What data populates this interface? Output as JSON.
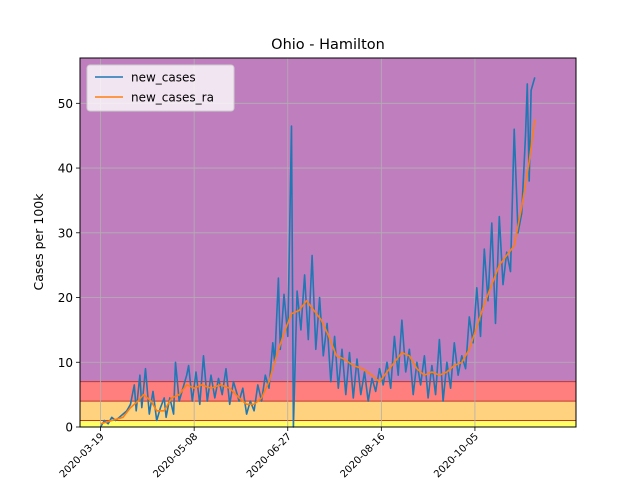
{
  "chart_data": {
    "type": "line",
    "title": "Ohio - Hamilton",
    "xlabel": "",
    "ylabel": "Cases per 100k",
    "x_range": [
      "2020-03-08",
      "2020-11-28"
    ],
    "ylim": [
      0,
      57
    ],
    "grid": true,
    "legend": "top-left",
    "x_ticks": [
      {
        "date": "2020-03-19",
        "label": "2020-03-19"
      },
      {
        "date": "2020-05-08",
        "label": "2020-05-08"
      },
      {
        "date": "2020-06-27",
        "label": "2020-06-27"
      },
      {
        "date": "2020-08-16",
        "label": "2020-08-16"
      },
      {
        "date": "2020-10-05",
        "label": "2020-10-05"
      }
    ],
    "y_ticks": [
      0,
      10,
      20,
      30,
      40,
      50
    ],
    "bands": [
      {
        "from": 0,
        "to": 1,
        "color": "#ffff66"
      },
      {
        "from": 1,
        "to": 4,
        "color": "#ffd280"
      },
      {
        "from": 4,
        "to": 7,
        "color": "#ff7f7f"
      },
      {
        "from": 7,
        "to": 57,
        "color": "#bf7fbf"
      }
    ],
    "band_edge_color": "#c0392b",
    "series": [
      {
        "name": "new_cases",
        "color": "#1f77b4",
        "points": [
          [
            "2020-03-19",
            0.0
          ],
          [
            "2020-03-21",
            1.0
          ],
          [
            "2020-03-23",
            0.5
          ],
          [
            "2020-03-25",
            1.5
          ],
          [
            "2020-03-27",
            1.0
          ],
          [
            "2020-03-29",
            1.5
          ],
          [
            "2020-03-31",
            2.0
          ],
          [
            "2020-04-02",
            2.5
          ],
          [
            "2020-04-04",
            3.5
          ],
          [
            "2020-04-06",
            6.5
          ],
          [
            "2020-04-07",
            2.5
          ],
          [
            "2020-04-09",
            8.0
          ],
          [
            "2020-04-10",
            3.0
          ],
          [
            "2020-04-12",
            9.0
          ],
          [
            "2020-04-14",
            2.0
          ],
          [
            "2020-04-16",
            5.5
          ],
          [
            "2020-04-18",
            1.0
          ],
          [
            "2020-04-20",
            3.0
          ],
          [
            "2020-04-22",
            4.5
          ],
          [
            "2020-04-23",
            1.5
          ],
          [
            "2020-04-25",
            4.5
          ],
          [
            "2020-04-27",
            2.0
          ],
          [
            "2020-04-28",
            10.0
          ],
          [
            "2020-04-30",
            4.0
          ],
          [
            "2020-05-02",
            6.0
          ],
          [
            "2020-05-04",
            8.0
          ],
          [
            "2020-05-05",
            9.5
          ],
          [
            "2020-05-07",
            4.0
          ],
          [
            "2020-05-09",
            8.5
          ],
          [
            "2020-05-11",
            3.5
          ],
          [
            "2020-05-13",
            11.0
          ],
          [
            "2020-05-15",
            4.0
          ],
          [
            "2020-05-17",
            8.0
          ],
          [
            "2020-05-19",
            4.5
          ],
          [
            "2020-05-21",
            7.5
          ],
          [
            "2020-05-23",
            5.0
          ],
          [
            "2020-05-25",
            9.0
          ],
          [
            "2020-05-27",
            3.5
          ],
          [
            "2020-05-29",
            7.0
          ],
          [
            "2020-06-01",
            4.0
          ],
          [
            "2020-06-03",
            6.0
          ],
          [
            "2020-06-05",
            2.0
          ],
          [
            "2020-06-07",
            4.0
          ],
          [
            "2020-06-09",
            2.5
          ],
          [
            "2020-06-11",
            6.5
          ],
          [
            "2020-06-13",
            4.0
          ],
          [
            "2020-06-15",
            8.0
          ],
          [
            "2020-06-17",
            6.0
          ],
          [
            "2020-06-19",
            13.0
          ],
          [
            "2020-06-20",
            10.0
          ],
          [
            "2020-06-22",
            23.0
          ],
          [
            "2020-06-23",
            12.0
          ],
          [
            "2020-06-25",
            20.5
          ],
          [
            "2020-06-27",
            14.0
          ],
          [
            "2020-06-29",
            46.5
          ],
          [
            "2020-06-30",
            0.0
          ],
          [
            "2020-07-02",
            21.0
          ],
          [
            "2020-07-04",
            15.0
          ],
          [
            "2020-07-06",
            23.5
          ],
          [
            "2020-07-08",
            13.5
          ],
          [
            "2020-07-10",
            26.5
          ],
          [
            "2020-07-12",
            12.0
          ],
          [
            "2020-07-14",
            20.0
          ],
          [
            "2020-07-16",
            11.0
          ],
          [
            "2020-07-18",
            16.0
          ],
          [
            "2020-07-20",
            7.0
          ],
          [
            "2020-07-22",
            14.0
          ],
          [
            "2020-07-24",
            6.0
          ],
          [
            "2020-07-26",
            12.0
          ],
          [
            "2020-07-28",
            5.0
          ],
          [
            "2020-07-30",
            11.5
          ],
          [
            "2020-08-01",
            4.5
          ],
          [
            "2020-08-03",
            10.5
          ],
          [
            "2020-08-05",
            5.0
          ],
          [
            "2020-08-07",
            8.5
          ],
          [
            "2020-08-09",
            4.0
          ],
          [
            "2020-08-11",
            7.5
          ],
          [
            "2020-08-13",
            5.5
          ],
          [
            "2020-08-15",
            9.0
          ],
          [
            "2020-08-17",
            6.5
          ],
          [
            "2020-08-19",
            10.0
          ],
          [
            "2020-08-21",
            6.0
          ],
          [
            "2020-08-23",
            14.0
          ],
          [
            "2020-08-25",
            8.0
          ],
          [
            "2020-08-27",
            16.5
          ],
          [
            "2020-08-29",
            8.5
          ],
          [
            "2020-08-31",
            12.0
          ],
          [
            "2020-09-02",
            5.0
          ],
          [
            "2020-09-04",
            10.0
          ],
          [
            "2020-09-06",
            6.5
          ],
          [
            "2020-09-08",
            11.0
          ],
          [
            "2020-09-10",
            4.5
          ],
          [
            "2020-09-12",
            9.5
          ],
          [
            "2020-09-14",
            5.0
          ],
          [
            "2020-09-16",
            13.5
          ],
          [
            "2020-09-18",
            4.0
          ],
          [
            "2020-09-20",
            10.0
          ],
          [
            "2020-09-22",
            6.0
          ],
          [
            "2020-09-24",
            13.0
          ],
          [
            "2020-09-26",
            8.0
          ],
          [
            "2020-09-28",
            11.0
          ],
          [
            "2020-09-30",
            9.0
          ],
          [
            "2020-10-02",
            17.0
          ],
          [
            "2020-10-04",
            13.0
          ],
          [
            "2020-10-06",
            21.5
          ],
          [
            "2020-10-08",
            14.0
          ],
          [
            "2020-10-10",
            27.5
          ],
          [
            "2020-10-12",
            19.5
          ],
          [
            "2020-10-14",
            31.5
          ],
          [
            "2020-10-16",
            16.0
          ],
          [
            "2020-10-18",
            32.5
          ],
          [
            "2020-10-20",
            22.0
          ],
          [
            "2020-10-22",
            27.0
          ],
          [
            "2020-10-24",
            24.0
          ],
          [
            "2020-10-26",
            46.0
          ],
          [
            "2020-10-28",
            30.0
          ],
          [
            "2020-10-30",
            33.0
          ],
          [
            "2020-11-01",
            45.0
          ],
          [
            "2020-11-02",
            53.0
          ],
          [
            "2020-11-03",
            38.0
          ],
          [
            "2020-11-04",
            52.0
          ],
          [
            "2020-11-06",
            54.0
          ]
        ]
      },
      {
        "name": "new_cases_ra",
        "color": "#ff7f0e",
        "points": [
          [
            "2020-03-19",
            0.5
          ],
          [
            "2020-03-25",
            1.0
          ],
          [
            "2020-03-31",
            1.5
          ],
          [
            "2020-04-04",
            3.0
          ],
          [
            "2020-04-08",
            4.0
          ],
          [
            "2020-04-11",
            5.0
          ],
          [
            "2020-04-15",
            4.0
          ],
          [
            "2020-04-18",
            2.5
          ],
          [
            "2020-04-22",
            2.5
          ],
          [
            "2020-04-26",
            4.5
          ],
          [
            "2020-04-30",
            5.0
          ],
          [
            "2020-05-04",
            6.5
          ],
          [
            "2020-05-08",
            6.0
          ],
          [
            "2020-05-12",
            6.5
          ],
          [
            "2020-05-17",
            6.0
          ],
          [
            "2020-05-22",
            6.5
          ],
          [
            "2020-05-27",
            6.0
          ],
          [
            "2020-06-01",
            4.5
          ],
          [
            "2020-06-05",
            3.5
          ],
          [
            "2020-06-09",
            3.5
          ],
          [
            "2020-06-13",
            4.5
          ],
          [
            "2020-06-17",
            7.0
          ],
          [
            "2020-06-21",
            11.0
          ],
          [
            "2020-06-25",
            14.5
          ],
          [
            "2020-06-29",
            17.5
          ],
          [
            "2020-07-03",
            18.0
          ],
          [
            "2020-07-07",
            19.5
          ],
          [
            "2020-07-11",
            18.0
          ],
          [
            "2020-07-15",
            16.5
          ],
          [
            "2020-07-19",
            14.0
          ],
          [
            "2020-07-23",
            11.0
          ],
          [
            "2020-07-27",
            10.5
          ],
          [
            "2020-08-01",
            9.5
          ],
          [
            "2020-08-06",
            9.0
          ],
          [
            "2020-08-11",
            8.0
          ],
          [
            "2020-08-15",
            7.0
          ],
          [
            "2020-08-19",
            8.5
          ],
          [
            "2020-08-23",
            10.0
          ],
          [
            "2020-08-27",
            11.5
          ],
          [
            "2020-08-31",
            11.0
          ],
          [
            "2020-09-04",
            9.0
          ],
          [
            "2020-09-08",
            8.0
          ],
          [
            "2020-09-12",
            8.5
          ],
          [
            "2020-09-16",
            8.0
          ],
          [
            "2020-09-20",
            8.5
          ],
          [
            "2020-09-24",
            9.5
          ],
          [
            "2020-09-28",
            10.0
          ],
          [
            "2020-10-02",
            12.0
          ],
          [
            "2020-10-06",
            15.5
          ],
          [
            "2020-10-10",
            19.0
          ],
          [
            "2020-10-14",
            22.0
          ],
          [
            "2020-10-18",
            25.0
          ],
          [
            "2020-10-22",
            26.5
          ],
          [
            "2020-10-26",
            28.0
          ],
          [
            "2020-10-30",
            34.0
          ],
          [
            "2020-11-03",
            41.0
          ],
          [
            "2020-11-06",
            47.5
          ]
        ]
      }
    ]
  }
}
